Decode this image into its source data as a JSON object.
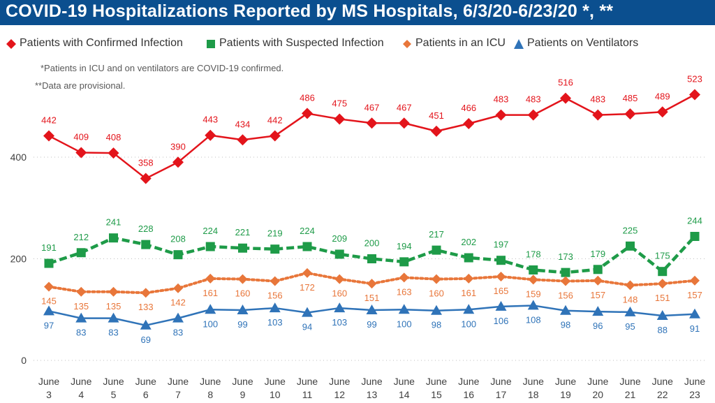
{
  "title": "COVID-19 Hospitalizations Reported by MS Hospitals, 6/3/20-6/23/20 *, **",
  "notes": [
    "*Patients in ICU and on ventilators are COVID-19 confirmed.",
    "**Data are provisional."
  ],
  "chart_data": {
    "type": "line",
    "categories": [
      "June 3",
      "June 4",
      "June 5",
      "June 6",
      "June 7",
      "June 8",
      "June 9",
      "June 10",
      "June 11",
      "June 12",
      "June 13",
      "June 14",
      "June 15",
      "June 16",
      "June 17",
      "June 18",
      "June 19",
      "June 20",
      "June 21",
      "June 22",
      "June 23"
    ],
    "x_month": "June",
    "x_days": [
      "3",
      "4",
      "5",
      "6",
      "7",
      "8",
      "9",
      "10",
      "11",
      "12",
      "13",
      "14",
      "15",
      "16",
      "17",
      "18",
      "19",
      "20",
      "21",
      "22",
      "23"
    ],
    "y_ticks": [
      "0",
      "200",
      "400"
    ],
    "ylim": [
      0,
      600
    ],
    "grid": "horizontal dotted",
    "legend_position": "top",
    "series": [
      {
        "name": "Patients with Confirmed Infection",
        "color": "#e3141b",
        "marker": "diamond",
        "line": "solid",
        "values": [
          442,
          409,
          408,
          358,
          390,
          443,
          434,
          442,
          486,
          475,
          467,
          467,
          451,
          466,
          483,
          483,
          516,
          483,
          485,
          489,
          523
        ],
        "labels": [
          "442",
          "409",
          "408",
          "358",
          "390",
          "443",
          "434",
          "442",
          "486",
          "475",
          "467",
          "467",
          "451",
          "466",
          "483",
          "483",
          "516",
          "483",
          "485",
          "489",
          "523"
        ]
      },
      {
        "name": "Patients with Suspected Infection",
        "color": "#1e9b48",
        "marker": "square",
        "line": "dashed",
        "values": [
          191,
          212,
          241,
          228,
          208,
          224,
          221,
          219,
          224,
          209,
          200,
          194,
          217,
          202,
          197,
          178,
          173,
          179,
          225,
          175,
          244
        ],
        "labels": [
          "191",
          "212",
          "241",
          "228",
          "208",
          "224",
          "221",
          "219",
          "224",
          "209",
          "200",
          "194",
          "217",
          "202",
          "197",
          "178",
          "173",
          "179",
          "225",
          "175",
          "244"
        ]
      },
      {
        "name": "Patients in an ICU",
        "color": "#e8763a",
        "marker": "diamond",
        "line": "dotted",
        "values": [
          145,
          135,
          135,
          133,
          142,
          161,
          160,
          156,
          172,
          160,
          151,
          163,
          160,
          161,
          165,
          159,
          156,
          157,
          148,
          151,
          157
        ],
        "labels": [
          "145",
          "135",
          "135",
          "133",
          "142",
          "161",
          "160",
          "156",
          "172",
          "160",
          "151",
          "163",
          "160",
          "161",
          "165",
          "159",
          "156",
          "157",
          "148",
          "151",
          "157"
        ]
      },
      {
        "name": "Patients on Ventilators",
        "color": "#2f73b8",
        "marker": "triangle",
        "line": "solid",
        "values": [
          97,
          83,
          83,
          69,
          83,
          100,
          99,
          103,
          94,
          103,
          99,
          100,
          98,
          100,
          106,
          108,
          98,
          96,
          95,
          88,
          91
        ],
        "labels": [
          "97",
          "83",
          "83",
          "69",
          "83",
          "100",
          "99",
          "103",
          "94",
          "103",
          "99",
          "100",
          "98",
          "100",
          "106",
          "108",
          "98",
          "96",
          "95",
          "88",
          "91"
        ]
      }
    ]
  }
}
